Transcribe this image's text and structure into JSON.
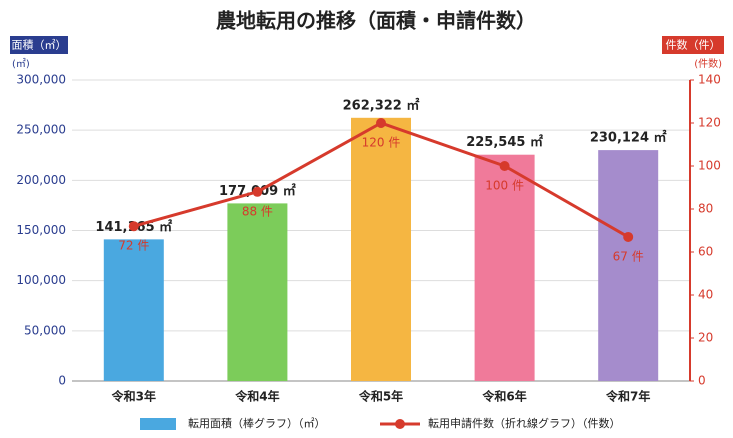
{
  "chart_data": {
    "type": "bar_line",
    "title": "農地転用の推移（面積・申請件数）",
    "y_axis_badge": "面積（㎡）",
    "y_axis_unit": "(㎡)",
    "y2_axis_badge": "件数（件）",
    "y2_axis_unit": "(件数)",
    "categories": [
      "令和3年",
      "令和4年",
      "令和5年",
      "令和6年",
      "令和7年"
    ],
    "series": [
      {
        "name": "転用面積（棒グラフ）（㎡）",
        "type": "bar",
        "color": "#4aa8e0",
        "colors": [
          "#4aa8e0",
          "#7ccc5a",
          "#f5b642",
          "#f07a9a",
          "#a58ccc"
        ],
        "values": [
          141165,
          177009,
          262322,
          225545,
          230124
        ],
        "value_labels": [
          "141,165 ㎡",
          "177,009 ㎡",
          "262,322 ㎡",
          "225,545 ㎡",
          "230,124 ㎡"
        ]
      },
      {
        "name": "転用申請件数（折れ線グラフ）（件数）",
        "type": "line",
        "axis": "y2",
        "color": "#d63a2c",
        "values": [
          72,
          88,
          120,
          100,
          67
        ],
        "value_labels": [
          "72 件",
          "88 件",
          "120 件",
          "100 件",
          "67 件"
        ]
      }
    ],
    "ylim": [
      0,
      300000
    ],
    "yticks": [
      0,
      {
        "value": 50000,
        "label": "50,000"
      },
      {
        "value": 100000,
        "label": "100,000"
      },
      {
        "value": 150000,
        "label": "150,000"
      },
      {
        "value": 200000,
        "label": "200,000"
      },
      {
        "value": 250000,
        "label": "250,000"
      },
      {
        "value": 300000,
        "label": "300,000"
      }
    ],
    "y2lim": [
      0,
      140
    ],
    "y2ticks": [
      0,
      20,
      40,
      60,
      80,
      100,
      120,
      140
    ],
    "grid": true
  }
}
